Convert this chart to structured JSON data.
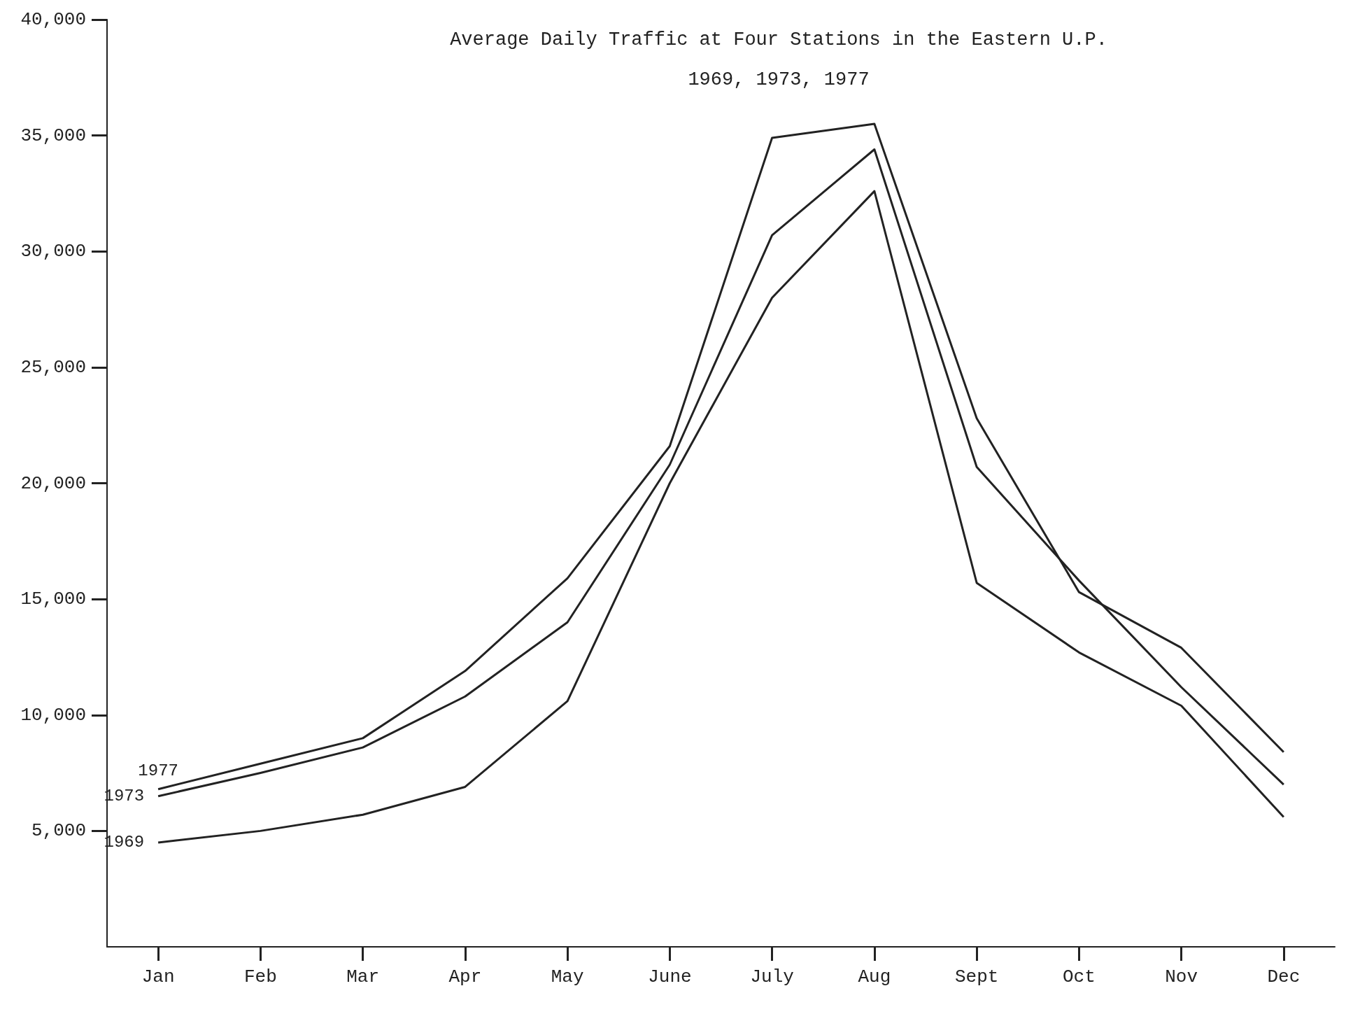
{
  "chart_data": {
    "type": "line",
    "title": "Average Daily Traffic at Four Stations in the Eastern U.P.",
    "subtitle": "1969, 1973, 1977",
    "categories": [
      "Jan",
      "Feb",
      "Mar",
      "Apr",
      "May",
      "June",
      "July",
      "Aug",
      "Sept",
      "Oct",
      "Nov",
      "Dec"
    ],
    "series": [
      {
        "name": "1977",
        "color": "#222222",
        "values": [
          6800,
          7900,
          9000,
          11900,
          15900,
          21600,
          34900,
          35500,
          22800,
          15300,
          12900,
          8400
        ]
      },
      {
        "name": "1973",
        "color": "#222222",
        "values": [
          6500,
          7500,
          8600,
          10800,
          14000,
          20800,
          30700,
          34400,
          20700,
          15800,
          11200,
          7000
        ]
      },
      {
        "name": "1969",
        "color": "#222222",
        "values": [
          4500,
          5000,
          5700,
          6900,
          10600,
          20000,
          28000,
          32600,
          15700,
          12700,
          10400,
          5600
        ]
      }
    ],
    "ylim": [
      0,
      40000
    ],
    "yticks": [
      {
        "value": 5000,
        "label": "5,000"
      },
      {
        "value": 10000,
        "label": "10,000"
      },
      {
        "value": 15000,
        "label": "15,000"
      },
      {
        "value": 20000,
        "label": "20,000"
      },
      {
        "value": 25000,
        "label": "25,000"
      },
      {
        "value": 30000,
        "label": "30,000"
      },
      {
        "value": 35000,
        "label": "35,000"
      },
      {
        "value": 40000,
        "label": "40,000"
      }
    ],
    "grid": false,
    "legend": "left",
    "marker": "none",
    "line_style": "solid"
  }
}
